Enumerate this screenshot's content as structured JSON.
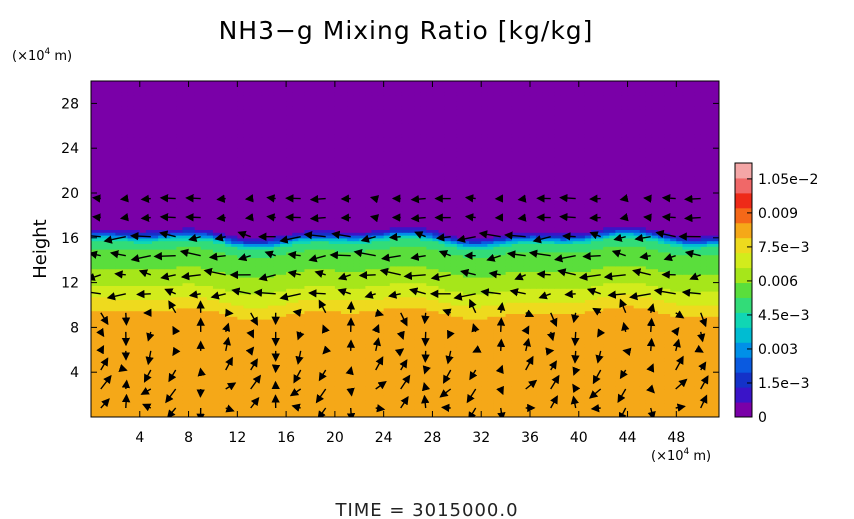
{
  "chart_data": {
    "type": "heatmap",
    "title": "NH3−g Mixing Ratio [kg/kg]",
    "ylabel": "Height",
    "xunit": "(×10",
    "xunit_exp": "4",
    "xunit_tail": " m)",
    "yunit": "(×10",
    "yunit_exp": "4",
    "yunit_tail": " m)",
    "xlim": [
      0,
      51.5
    ],
    "ylim": [
      0,
      30
    ],
    "x_ticks": [
      4,
      8,
      12,
      16,
      20,
      24,
      28,
      32,
      36,
      40,
      44,
      48
    ],
    "y_ticks": [
      4,
      8,
      12,
      16,
      20,
      24,
      28
    ],
    "time_label": "TIME = 3015000.0",
    "colorbar": {
      "range": [
        0,
        0.0112
      ],
      "labels": [
        "0",
        "1.5e−3",
        "0.003",
        "4.5e−3",
        "0.006",
        "7.5e−3",
        "0.009",
        "1.05e−2"
      ],
      "label_values": [
        0,
        0.0015,
        0.003,
        0.0045,
        0.006,
        0.0075,
        0.009,
        0.0105
      ],
      "colors": [
        "#7a00a8",
        "#3a14c8",
        "#1432c8",
        "#0a5ae0",
        "#0090e8",
        "#00bcd2",
        "#10d6b4",
        "#32dc78",
        "#5ade3c",
        "#a6e61a",
        "#d2ec1c",
        "#eeda1e",
        "#f5a818",
        "#f56818",
        "#ee2a18",
        "#f06868",
        "#f4a6a6"
      ]
    },
    "profile": [
      {
        "height": 0,
        "value": 0.0081
      },
      {
        "height": 9,
        "value": 0.0081
      },
      {
        "height": 10,
        "value": 0.0075
      },
      {
        "height": 11,
        "value": 0.0068
      },
      {
        "height": 12.5,
        "value": 0.0062
      },
      {
        "height": 13.5,
        "value": 0.0057
      },
      {
        "height": 15,
        "value": 0.0052
      },
      {
        "height": 15.6,
        "value": 0.0045
      },
      {
        "height": 16,
        "value": 0.0025
      },
      {
        "height": 16.4,
        "value": 0.0008
      },
      {
        "height": 17,
        "value": 0.0001
      },
      {
        "height": 30,
        "value": 0
      }
    ],
    "vectors": "wind vectors (unlabeled)"
  }
}
